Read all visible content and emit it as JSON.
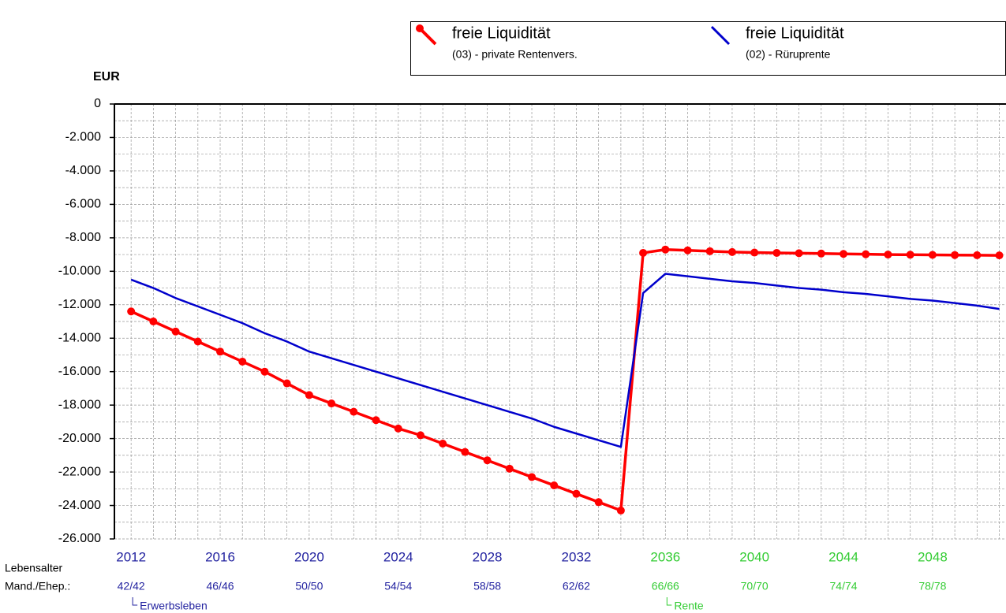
{
  "chart_data": {
    "type": "line",
    "y_label": "EUR",
    "x": [
      2012,
      2013,
      2014,
      2015,
      2016,
      2017,
      2018,
      2019,
      2020,
      2021,
      2022,
      2023,
      2024,
      2025,
      2026,
      2027,
      2028,
      2029,
      2030,
      2031,
      2032,
      2033,
      2034,
      2035,
      2036,
      2037,
      2038,
      2039,
      2040,
      2041,
      2042,
      2043,
      2044,
      2045,
      2046,
      2047,
      2048,
      2049,
      2050,
      2051
    ],
    "series": [
      {
        "name": "freie Liquidität",
        "subtitle": "(03) - private Rentenvers.",
        "color": "#ff0000",
        "markers": true,
        "values": [
          -12400,
          -13000,
          -13600,
          -14200,
          -14800,
          -15400,
          -16000,
          -16700,
          -17400,
          -17900,
          -18400,
          -18900,
          -19400,
          -19800,
          -20300,
          -20800,
          -21300,
          -21800,
          -22300,
          -22800,
          -23300,
          -23800,
          -24300,
          -8900,
          -8700,
          -8750,
          -8800,
          -8850,
          -8880,
          -8900,
          -8920,
          -8940,
          -8960,
          -8980,
          -9000,
          -9010,
          -9020,
          -9030,
          -9040,
          -9050
        ]
      },
      {
        "name": "freie Liquidität",
        "subtitle": "(02) - Rüruprente",
        "color": "#0000cc",
        "markers": false,
        "values": [
          -10500,
          -11000,
          -11600,
          -12100,
          -12600,
          -13100,
          -13700,
          -14200,
          -14800,
          -15200,
          -15600,
          -16000,
          -16400,
          -16800,
          -17200,
          -17600,
          -18000,
          -18400,
          -18800,
          -19300,
          -19700,
          -20100,
          -20500,
          -11300,
          -10150,
          -10300,
          -10450,
          -10600,
          -10700,
          -10850,
          -11000,
          -11100,
          -11250,
          -11350,
          -11500,
          -11650,
          -11750,
          -11900,
          -12050,
          -12250
        ]
      }
    ],
    "xlim": [
      2011.25,
      2051.3
    ],
    "xticks": [
      2012,
      2016,
      2020,
      2024,
      2028,
      2032,
      2036,
      2040,
      2044,
      2048
    ],
    "age_row_labels": [
      "Lebensalter",
      "Mand./Ehep.:"
    ],
    "age_labels": [
      "42/42",
      "46/46",
      "50/50",
      "54/54",
      "58/58",
      "62/62",
      "66/66",
      "70/70",
      "74/74",
      "78/78"
    ],
    "phases": [
      {
        "label": "Erwerbsleben",
        "start": 2012,
        "color": "#2323a0"
      },
      {
        "label": "Rente",
        "start": 2036,
        "color": "#33cc33"
      }
    ],
    "ylim": [
      -26000,
      0
    ],
    "yticks": [
      0,
      {
        "value": -2000,
        "label": "-2.000"
      },
      {
        "value": -4000,
        "label": "-4.000"
      },
      {
        "value": -6000,
        "label": "-6.000"
      },
      {
        "value": -8000,
        "label": "-8.000"
      },
      {
        "value": -10000,
        "label": "-10.000"
      },
      {
        "value": -12000,
        "label": "-12.000"
      },
      {
        "value": -14000,
        "label": "-14.000"
      },
      {
        "value": -16000,
        "label": "-16.000"
      },
      {
        "value": -18000,
        "label": "-18.000"
      },
      {
        "value": -20000,
        "label": "-20.000"
      },
      {
        "value": -22000,
        "label": "-22.000"
      },
      {
        "value": -24000,
        "label": "-24.000"
      },
      {
        "value": -26000,
        "label": "-26.000"
      }
    ],
    "grid": true,
    "legend": "top-right"
  }
}
